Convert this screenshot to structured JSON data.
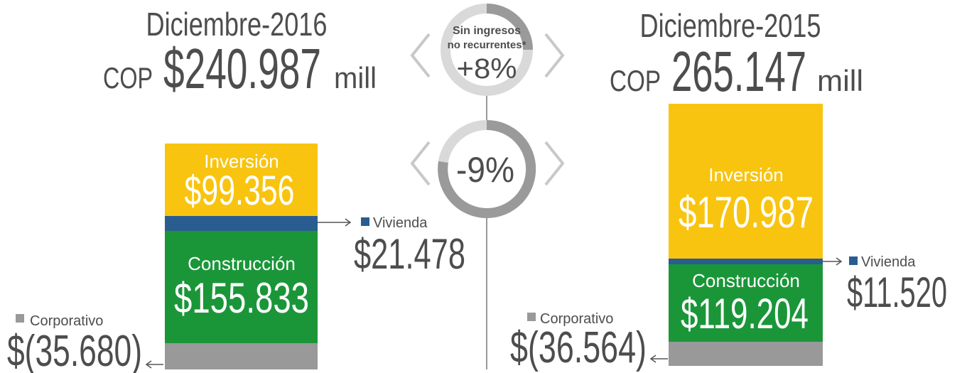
{
  "left": {
    "title": "Diciembre-2016",
    "currency": "COP",
    "total": "$240.987",
    "unit": "mill",
    "segments": [
      {
        "label": "Inversión",
        "value": "$99.356"
      },
      {
        "label": "Vivienda",
        "value": "$21.478"
      },
      {
        "label": "Construcción",
        "value": "$155.833"
      },
      {
        "label": "Corporativo",
        "value": "$(35.680)"
      }
    ]
  },
  "center": {
    "note_line1": "Sin ingresos",
    "note_line2": "no recurrentes*",
    "recurring_change": "+8%",
    "total_change": "-9%"
  },
  "right": {
    "title": "Diciembre-2015",
    "currency": "COP",
    "total": "265.147",
    "unit": "mill",
    "segments": [
      {
        "label": "Inversión",
        "value": "$170.987"
      },
      {
        "label": "Vivienda",
        "value": "$11.520"
      },
      {
        "label": "Construcción",
        "value": "$119.204"
      },
      {
        "label": "Corporativo",
        "value": "$(36.564)"
      }
    ]
  }
}
